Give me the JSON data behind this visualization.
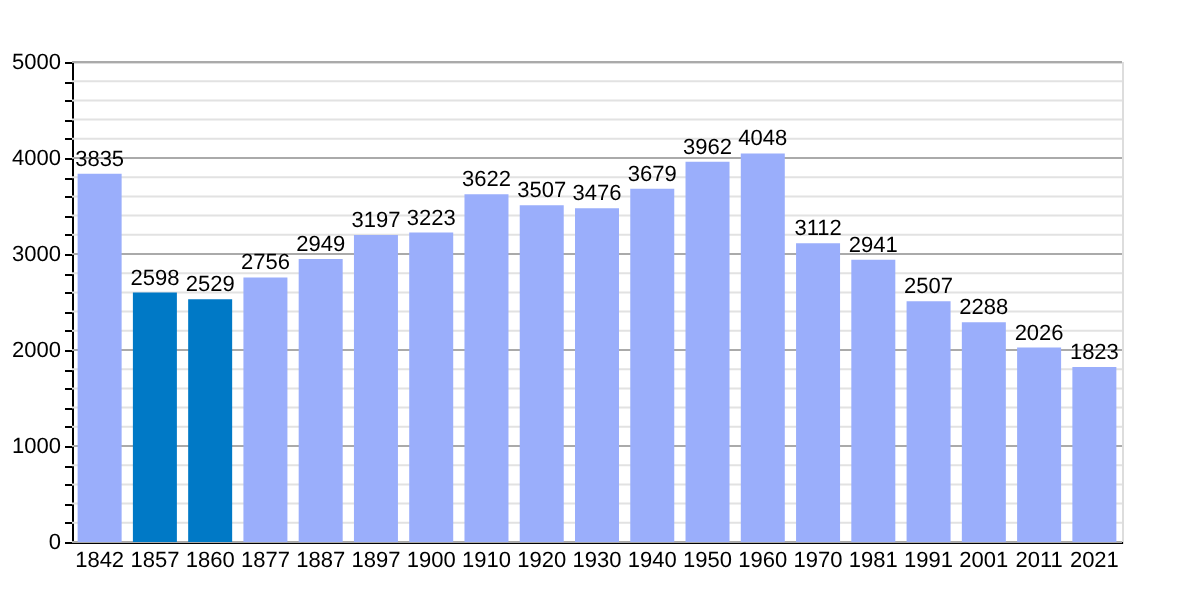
{
  "chart_data": {
    "type": "bar",
    "categories": [
      "1842",
      "1857",
      "1860",
      "1877",
      "1887",
      "1897",
      "1900",
      "1910",
      "1920",
      "1930",
      "1940",
      "1950",
      "1960",
      "1970",
      "1981",
      "1991",
      "2001",
      "2011",
      "2021"
    ],
    "values": [
      3835,
      2598,
      2529,
      2756,
      2949,
      3197,
      3223,
      3622,
      3507,
      3476,
      3679,
      3962,
      4048,
      3112,
      2941,
      2507,
      2288,
      2026,
      1823
    ],
    "colors": [
      "#9aaefb",
      "#0079c6",
      "#0079c6",
      "#9aaefb",
      "#9aaefb",
      "#9aaefb",
      "#9aaefb",
      "#9aaefb",
      "#9aaefb",
      "#9aaefb",
      "#9aaefb",
      "#9aaefb",
      "#9aaefb",
      "#9aaefb",
      "#9aaefb",
      "#9aaefb",
      "#9aaefb",
      "#9aaefb",
      "#9aaefb"
    ],
    "ylim": [
      0,
      5000
    ],
    "yticks": [
      0,
      {
        "value": 200,
        "label": null
      },
      {
        "value": 400,
        "label": null
      },
      {
        "value": 600,
        "label": null
      },
      {
        "value": 800,
        "label": null
      },
      1000,
      {
        "value": 1200,
        "label": null
      },
      {
        "value": 1400,
        "label": null
      },
      {
        "value": 1600,
        "label": null
      },
      {
        "value": 1800,
        "label": null
      },
      2000,
      {
        "value": 2200,
        "label": null
      },
      {
        "value": 2400,
        "label": null
      },
      {
        "value": 2600,
        "label": null
      },
      {
        "value": 2800,
        "label": null
      },
      3000,
      {
        "value": 3200,
        "label": null
      },
      {
        "value": 3400,
        "label": null
      },
      {
        "value": 3600,
        "label": null
      },
      {
        "value": 3800,
        "label": null
      },
      4000,
      {
        "value": 4200,
        "label": null
      },
      {
        "value": 4400,
        "label": null
      },
      {
        "value": 4600,
        "label": null
      },
      {
        "value": 4800,
        "label": null
      },
      5000
    ],
    "grid": true,
    "data_labels": true
  }
}
